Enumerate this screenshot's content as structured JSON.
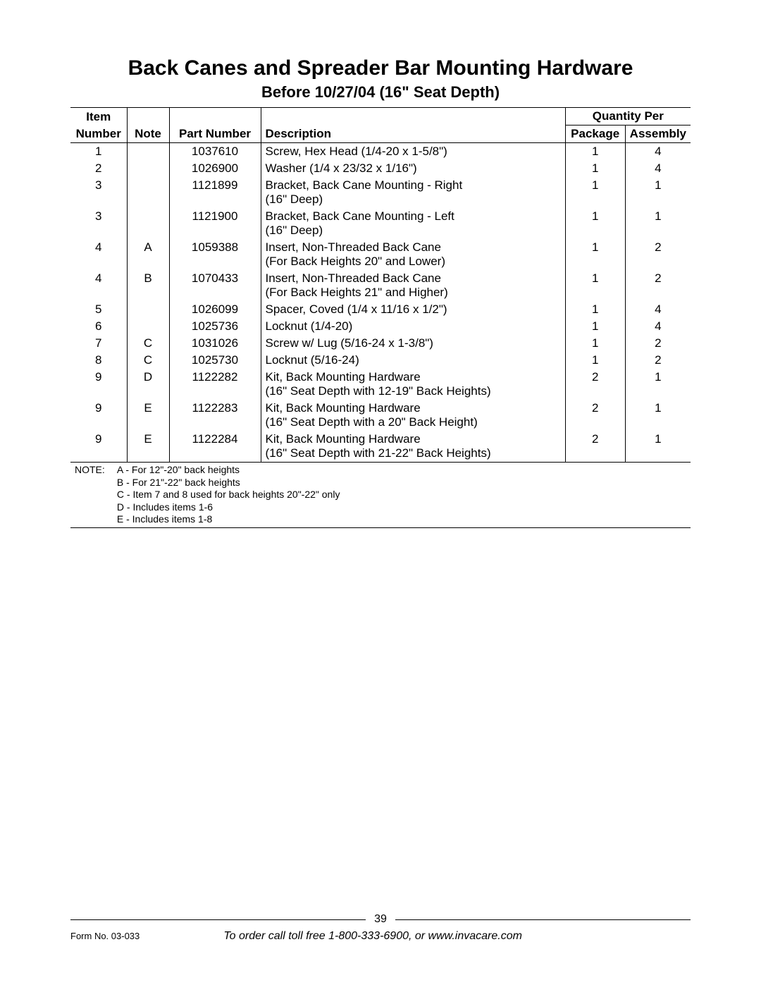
{
  "title": "Back Canes and Spreader Bar Mounting Hardware",
  "subtitle": "Before 10/27/04 (16\" Seat Depth)",
  "table": {
    "header": {
      "item_l1": "Item",
      "item_l2": "Number",
      "note": "Note",
      "part": "Part Number",
      "desc": "Description",
      "qty_span": "Quantity Per",
      "pkg": "Package",
      "asm": "Assembly"
    },
    "rows": [
      {
        "item": "1",
        "note": "",
        "part": "1037610",
        "desc": "Screw, Hex Head (1/4-20 x 1-5/8\")",
        "pkg": "1",
        "asm": "4"
      },
      {
        "item": "2",
        "note": "",
        "part": "1026900",
        "desc": "Washer (1/4 x 23/32 x 1/16\")",
        "pkg": "1",
        "asm": "4"
      },
      {
        "item": "3",
        "note": "",
        "part": "1121899",
        "desc": "Bracket, Back Cane Mounting - Right\n(16\" Deep)",
        "pkg": "1",
        "asm": "1"
      },
      {
        "item": "3",
        "note": "",
        "part": "1121900",
        "desc": "Bracket, Back Cane Mounting - Left\n(16\" Deep)",
        "pkg": "1",
        "asm": "1"
      },
      {
        "item": "4",
        "note": "A",
        "part": "1059388",
        "desc": "Insert, Non-Threaded Back Cane\n(For Back Heights 20\" and Lower)",
        "pkg": "1",
        "asm": "2"
      },
      {
        "item": "4",
        "note": "B",
        "part": "1070433",
        "desc": "Insert, Non-Threaded Back Cane\n(For Back Heights 21\" and Higher)",
        "pkg": "1",
        "asm": "2"
      },
      {
        "item": "5",
        "note": "",
        "part": "1026099",
        "desc": "Spacer, Coved (1/4 x 11/16 x 1/2\")",
        "pkg": "1",
        "asm": "4"
      },
      {
        "item": "6",
        "note": "",
        "part": "1025736",
        "desc": "Locknut (1/4-20)",
        "pkg": "1",
        "asm": "4"
      },
      {
        "item": "7",
        "note": "C",
        "part": "1031026",
        "desc": "Screw w/ Lug (5/16-24 x 1-3/8\")",
        "pkg": "1",
        "asm": "2"
      },
      {
        "item": "8",
        "note": "C",
        "part": "1025730",
        "desc": "Locknut (5/16-24)",
        "pkg": "1",
        "asm": "2"
      },
      {
        "item": "9",
        "note": "D",
        "part": "1122282",
        "desc": "Kit, Back Mounting Hardware\n(16\" Seat Depth with 12-19\" Back Heights)",
        "pkg": "2",
        "asm": "1"
      },
      {
        "item": "9",
        "note": "E",
        "part": "1122283",
        "desc": "Kit, Back Mounting Hardware\n(16\" Seat Depth with a 20\" Back Height)",
        "pkg": "2",
        "asm": "1"
      },
      {
        "item": "9",
        "note": "E",
        "part": "1122284",
        "desc": "Kit, Back Mounting Hardware\n(16\" Seat Depth with 21-22\" Back Heights)",
        "pkg": "2",
        "asm": "1"
      }
    ],
    "notes_label": "NOTE:",
    "notes": [
      "A - For 12\"-20\" back heights",
      "B - For 21\"-22\" back heights",
      "C - Item 7 and 8 used for back heights 20\"-22\" only",
      "D - Includes items 1-6",
      "E - Includes items 1-8"
    ]
  },
  "footer": {
    "page_number": "39",
    "form_no": "Form No. 03-033",
    "order_info": "To order call toll free 1-800-333-6900, or www.invacare.com"
  }
}
